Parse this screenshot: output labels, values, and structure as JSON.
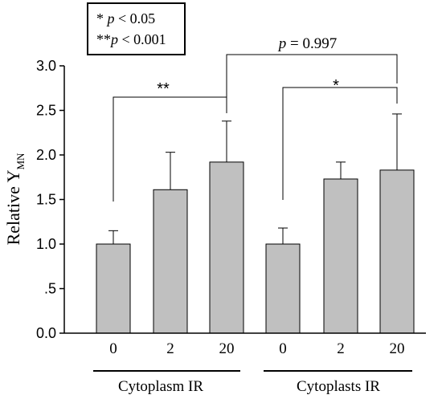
{
  "legend": {
    "line1_stars": "*",
    "line1_p": "p",
    "line1_rest": " < 0.05",
    "line2_stars": "**",
    "line2_p": "p",
    "line2_rest": " < 0.001"
  },
  "ylabel_main": "Relative Y",
  "ylabel_sub": "MN",
  "ytick_labels": [
    "0.0",
    ".5",
    "1.0",
    "1.5",
    "2.0",
    "2.5",
    "3.0"
  ],
  "group_labels": [
    "Cytoplasm IR",
    "Cytoplasts IR"
  ],
  "annotations": {
    "left_bracket": "**",
    "right_bracket": "*",
    "cross_bracket_p": "p",
    "cross_bracket_rest": " = 0.997"
  },
  "chart_data": {
    "type": "bar",
    "categories": [
      "0",
      "2",
      "20",
      "0",
      "2",
      "20"
    ],
    "groups": [
      {
        "name": "Cytoplasm IR",
        "categories": [
          "0",
          "2",
          "20"
        ]
      },
      {
        "name": "Cytoplasts IR",
        "categories": [
          "0",
          "2",
          "20"
        ]
      }
    ],
    "values": [
      1.0,
      1.61,
      1.92,
      1.0,
      1.73,
      1.83
    ],
    "error_plus": [
      0.15,
      0.42,
      0.46,
      0.18,
      0.19,
      0.63
    ],
    "ylabel": "Relative YMN",
    "ylim": [
      0,
      3.0
    ],
    "yticks": [
      0,
      0.5,
      1.0,
      1.5,
      2.0,
      2.5,
      3.0
    ],
    "significance": [
      {
        "from": 0,
        "to": 2,
        "label": "**"
      },
      {
        "from": 3,
        "to": 5,
        "label": "*"
      },
      {
        "from": 2,
        "to": 5,
        "label": "p = 0.997"
      }
    ],
    "colors": {
      "bar": "#c0c0c0",
      "outline": "#000000"
    }
  }
}
